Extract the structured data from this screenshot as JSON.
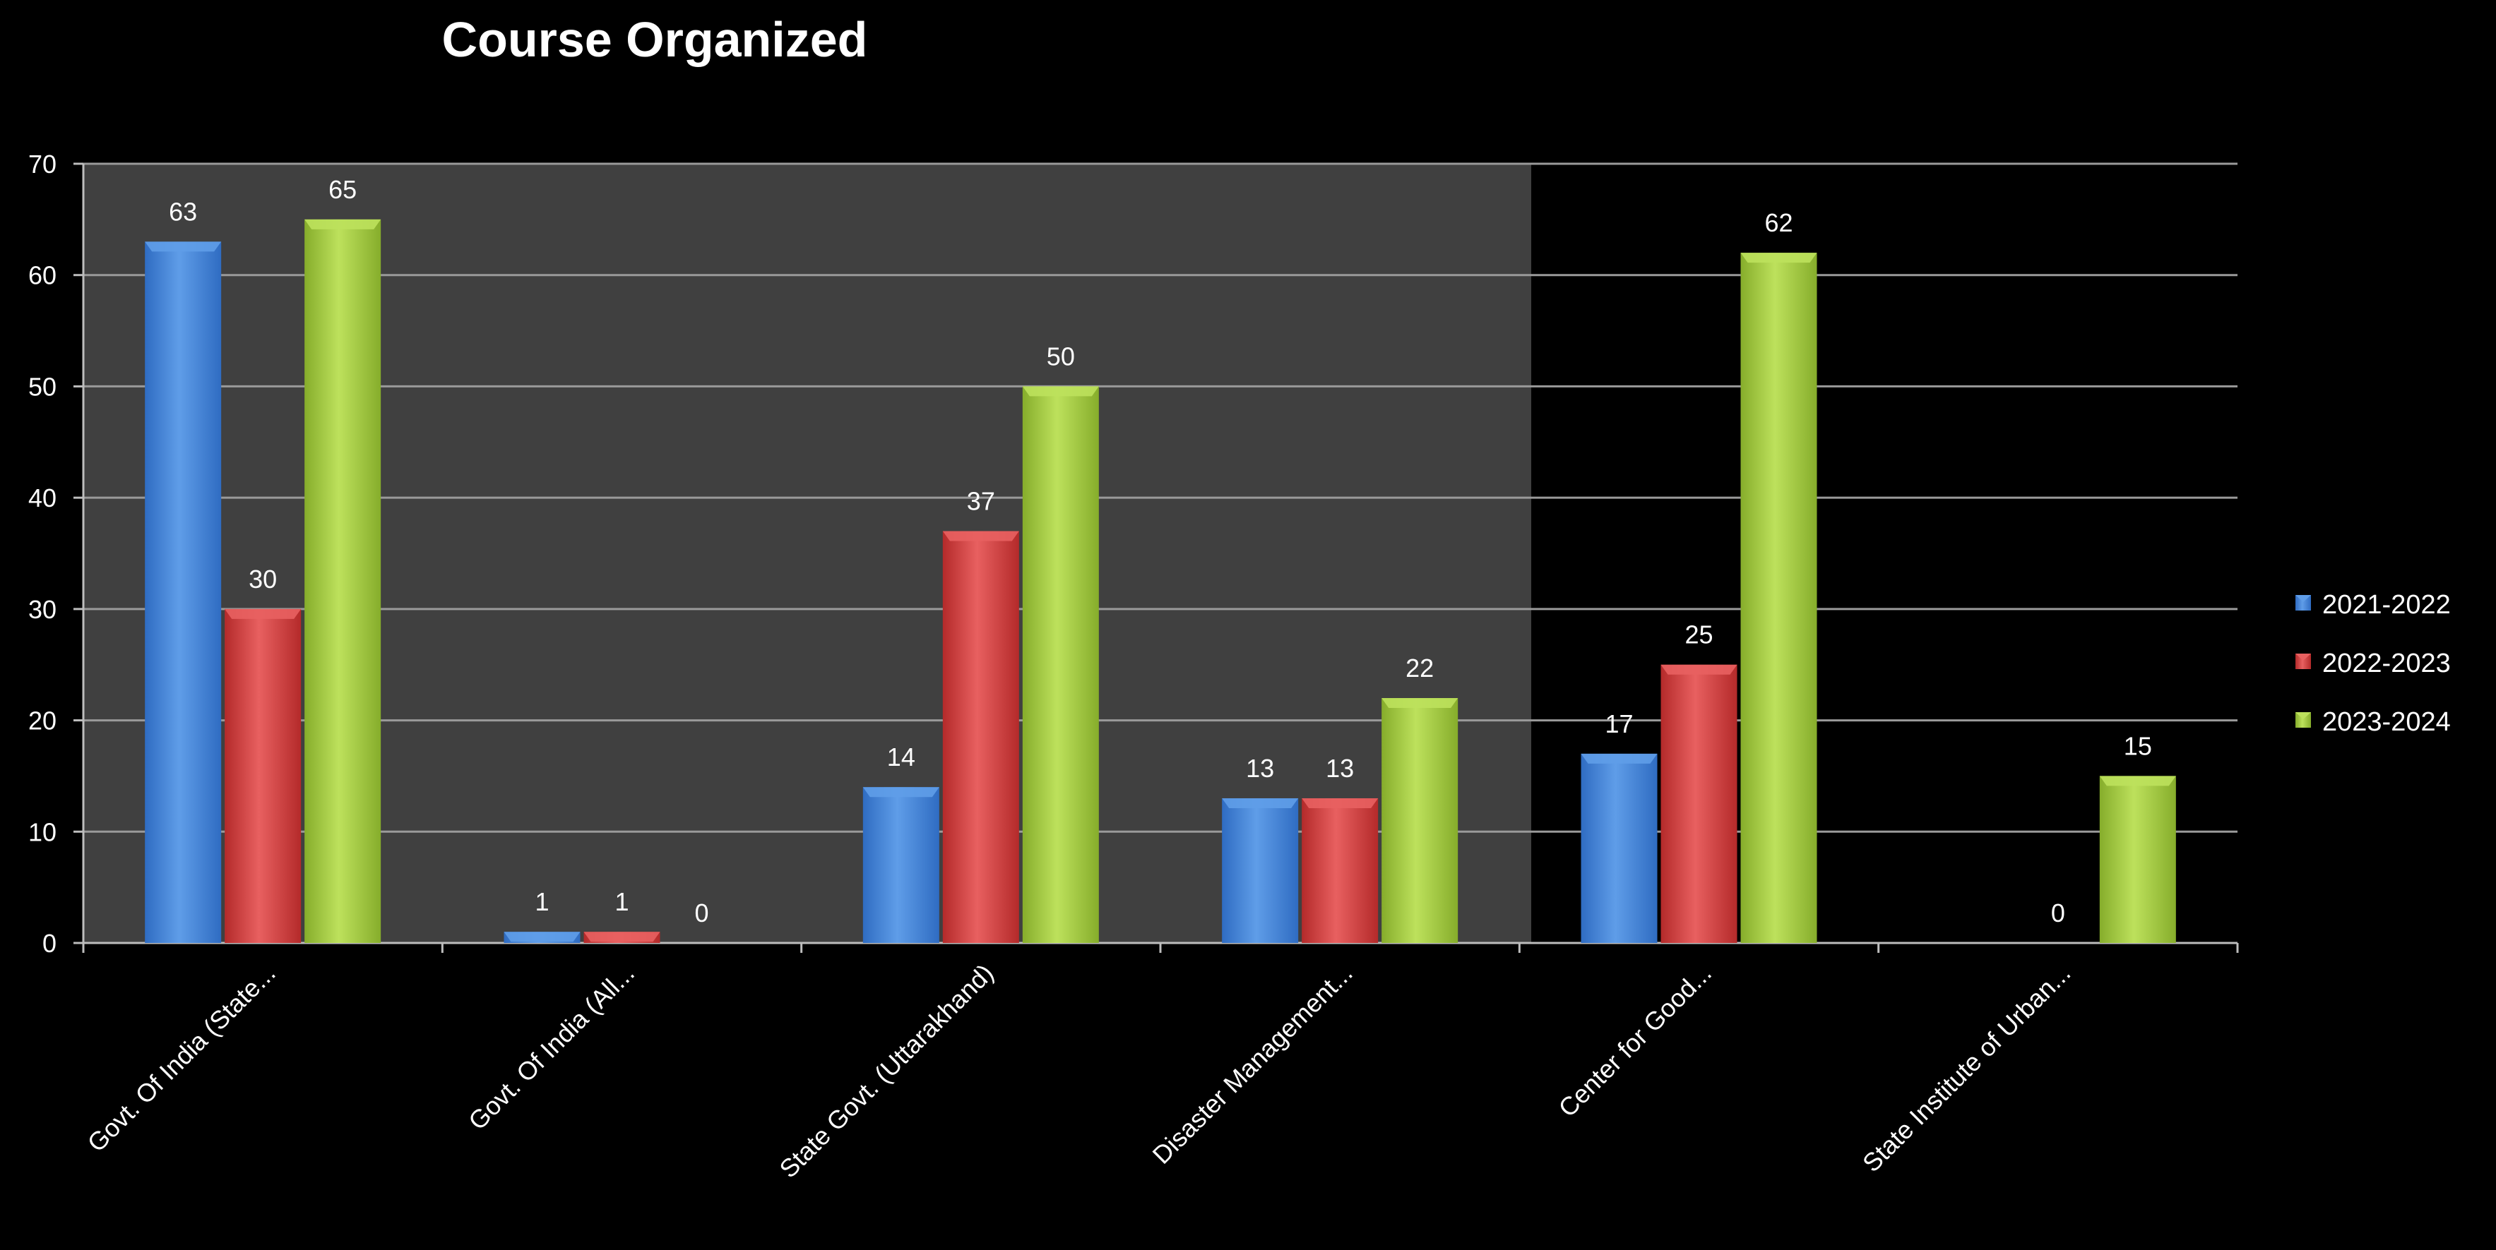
{
  "chart_data": {
    "type": "bar",
    "title": "Course Organized",
    "categories": [
      "Govt. Of India (State...",
      "Govt. Of India (All...",
      "State Govt. (Uttarakhand)",
      "Disaster Management...",
      "Center for Good...",
      "State Institute of Urban..."
    ],
    "series": [
      {
        "name": "2021-2022",
        "values": [
          63,
          1,
          14,
          13,
          17,
          0
        ],
        "labels": [
          "63",
          "1",
          "14",
          "13",
          "17",
          ""
        ]
      },
      {
        "name": "2022-2023",
        "values": [
          30,
          1,
          37,
          13,
          25,
          0
        ],
        "labels": [
          "30",
          "1",
          "37",
          "13",
          "25",
          "0"
        ]
      },
      {
        "name": "2023-2024",
        "values": [
          65,
          0,
          50,
          22,
          62,
          15
        ],
        "labels": [
          "65",
          "0",
          "50",
          "22",
          "62",
          "15"
        ]
      }
    ],
    "yticks": [
      "0",
      "10",
      "20",
      "30",
      "40",
      "50",
      "60",
      "70"
    ],
    "ylim": [
      0,
      70
    ],
    "grid": true,
    "legend_position": "right",
    "colors": {
      "2021-2022": [
        "#5f9de8",
        "#2f6cc2"
      ],
      "2022-2023": [
        "#e86060",
        "#b42a2a"
      ],
      "2023-2024": [
        "#bde15c",
        "#86ad2b"
      ],
      "plot_bg": "#404040",
      "grid": "#9a9a9a"
    }
  }
}
